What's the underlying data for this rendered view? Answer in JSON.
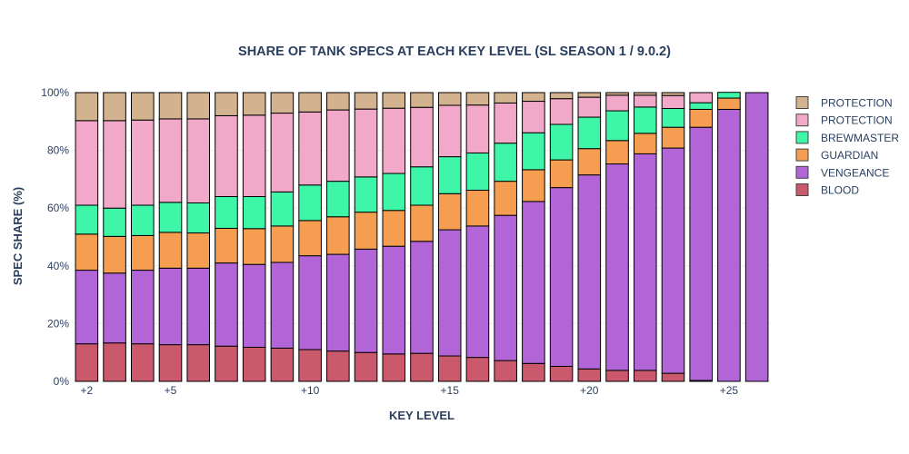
{
  "chart_data": {
    "type": "bar",
    "stacked": true,
    "title": "SHARE OF TANK SPECS AT EACH KEY LEVEL (SL SEASON 1 / 9.0.2)",
    "xlabel": "KEY LEVEL",
    "ylabel": "SPEC SHARE (%)",
    "ylim": [
      0,
      100
    ],
    "y_ticks": [
      0,
      20,
      40,
      60,
      80,
      100
    ],
    "y_tick_labels": [
      "0%",
      "20%",
      "40%",
      "60%",
      "80%",
      "100%"
    ],
    "x_tick_labels": [
      "+2",
      "+5",
      "+10",
      "+15",
      "+20",
      "+25"
    ],
    "x_tick_values": [
      2,
      5,
      10,
      15,
      20,
      25
    ],
    "x": [
      2,
      3,
      4,
      5,
      6,
      7,
      8,
      9,
      10,
      11,
      12,
      13,
      14,
      15,
      16,
      17,
      18,
      19,
      20,
      21,
      22,
      23,
      24,
      25,
      26
    ],
    "legend_position": "right",
    "series": [
      {
        "name": "BLOOD",
        "color": "#c9596b",
        "values": [
          13,
          13.3,
          13,
          12.7,
          12.7,
          12.2,
          11.8,
          11.5,
          11,
          10.5,
          10,
          9.5,
          9.7,
          8.8,
          8.3,
          7.2,
          6.2,
          5.2,
          4.3,
          3.8,
          3.8,
          2.8,
          0.3,
          0,
          0
        ]
      },
      {
        "name": "VENGEANCE",
        "color": "#b265d6",
        "values": [
          25.5,
          24.2,
          25.5,
          26.5,
          26.5,
          28.8,
          28.7,
          29.7,
          32.5,
          33.5,
          35.8,
          37.3,
          38.8,
          43.7,
          45.5,
          50.3,
          56.1,
          61.9,
          67.2,
          71.5,
          75,
          78,
          87.7,
          94.2,
          100
        ]
      },
      {
        "name": "GUARDIAN",
        "color": "#f59e52",
        "values": [
          12.5,
          12.7,
          12,
          12.4,
          12.2,
          12,
          12.4,
          12.6,
          12.2,
          13,
          12.8,
          12.4,
          12.5,
          12.5,
          12.4,
          11.8,
          11,
          9.6,
          9.1,
          8.1,
          7.1,
          7.2,
          6.2,
          3.9,
          0
        ]
      },
      {
        "name": "BREWMASTER",
        "color": "#3ff5a8",
        "values": [
          10,
          9.8,
          10.5,
          10.4,
          10.4,
          11,
          11.1,
          11.8,
          12.3,
          12.3,
          12.2,
          12.8,
          13.3,
          12.8,
          12.9,
          13.2,
          12.8,
          12.3,
          10.9,
          10.3,
          9.1,
          6.5,
          2.3,
          2,
          0
        ]
      },
      {
        "name": "PROTECTION",
        "color": "#f2a8c9",
        "values": [
          29.3,
          30.3,
          29.5,
          28.9,
          29.1,
          28,
          28.2,
          27.3,
          25.3,
          24.7,
          23.5,
          22.6,
          20.6,
          17.8,
          16.6,
          13.9,
          10.9,
          8.9,
          6.9,
          5.4,
          4.1,
          4.5,
          3.5,
          0,
          0
        ]
      },
      {
        "name": "PROTECTION",
        "color": "#d3b28f",
        "values": [
          9.7,
          9.7,
          9.5,
          9.1,
          9.1,
          8,
          7.8,
          7.1,
          6.7,
          6,
          5.7,
          5.4,
          5.1,
          4.4,
          4.3,
          3.6,
          3,
          2.1,
          1.6,
          0.9,
          0.9,
          1,
          0,
          0,
          0
        ]
      }
    ]
  }
}
